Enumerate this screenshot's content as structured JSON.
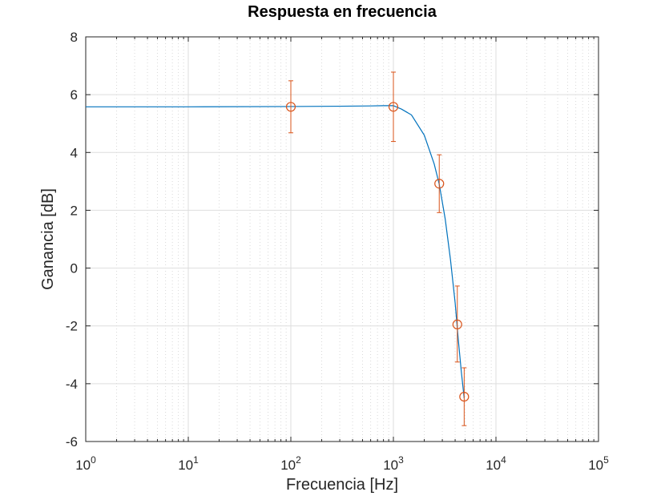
{
  "chart_data": {
    "type": "line",
    "title": "Respuesta en frecuencia",
    "xlabel": "Frecuencia [Hz]",
    "ylabel": "Ganancia [dB]",
    "x_scale": "log",
    "xlim": [
      1,
      100000
    ],
    "ylim": [
      -6,
      8
    ],
    "x_ticks": [
      1,
      10,
      100,
      1000,
      10000,
      100000
    ],
    "x_tick_base": "10",
    "x_tick_exponents": [
      "0",
      "1",
      "2",
      "3",
      "4",
      "5"
    ],
    "y_ticks": [
      8,
      6,
      4,
      2,
      0,
      -2,
      -4,
      -6
    ],
    "y_tick_labels": [
      "8",
      "6",
      "4",
      "2",
      "0",
      "-2",
      "-4",
      "-6"
    ],
    "grid": true,
    "legend": "none",
    "series": [
      {
        "kind": "line",
        "color": "#0072BD",
        "x": [
          1,
          10,
          100,
          300,
          600,
          800,
          1000,
          1200,
          1500,
          2000,
          2500,
          2800,
          3200,
          3600,
          4000,
          4300,
          4600,
          4900
        ],
        "y": [
          5.58,
          5.58,
          5.59,
          5.6,
          5.61,
          5.62,
          5.62,
          5.5,
          5.3,
          4.6,
          3.6,
          2.9,
          1.7,
          0.3,
          -1.2,
          -2.5,
          -3.6,
          -4.5
        ]
      },
      {
        "kind": "errorbar",
        "marker": "circle",
        "color": "#D95319",
        "x": [
          100,
          1000,
          2800,
          4200,
          4900
        ],
        "y": [
          5.58,
          5.58,
          2.92,
          -1.95,
          -4.45
        ],
        "y_low": [
          4.68,
          4.38,
          1.92,
          -3.25,
          -5.45
        ],
        "y_high": [
          6.48,
          6.78,
          3.92,
          -0.62,
          -3.45
        ]
      }
    ]
  }
}
